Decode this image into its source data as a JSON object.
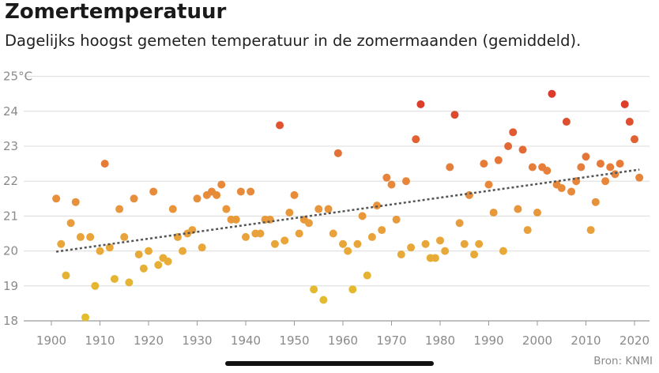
{
  "chart_data": {
    "type": "scatter",
    "title": "Zomertemperatuur",
    "subtitle": "Dagelijks hoogst gemeten temperatuur in de zomermaanden (gemiddeld).",
    "source": "Bron: KNMI",
    "xlim": [
      1900,
      2022
    ],
    "ylim": [
      18,
      25
    ],
    "x_ticks": [
      1900,
      1910,
      1920,
      1930,
      1940,
      1950,
      1960,
      1970,
      1980,
      1990,
      2000,
      2010,
      2020
    ],
    "y_ticks": [
      18,
      19,
      20,
      21,
      22,
      23,
      24,
      25
    ],
    "y_tick_labels": [
      "18",
      "19",
      "20",
      "21",
      "22",
      "23",
      "24",
      "25°C"
    ],
    "grid": "horizontal",
    "color_scale": [
      "#e3bd2c",
      "#e9a33b",
      "#e67f3a",
      "#dc3a2a"
    ],
    "trend": {
      "x": [
        1901,
        2021
      ],
      "y": [
        19.98,
        22.33
      ],
      "style": "dotted",
      "color": "#555555"
    },
    "series": [
      {
        "x": [
          1901,
          1902,
          1903,
          1904,
          1905,
          1906,
          1907,
          1908,
          1909,
          1910,
          1911,
          1912,
          1913,
          1914,
          1915,
          1916,
          1917,
          1918,
          1919,
          1920,
          1921,
          1922,
          1923,
          1924,
          1925,
          1926,
          1927,
          1928,
          1929,
          1930,
          1931,
          1932,
          1933,
          1934,
          1935,
          1936,
          1937,
          1938,
          1939,
          1940,
          1941,
          1942,
          1943,
          1944,
          1945,
          1946,
          1947,
          1948,
          1949,
          1950,
          1951,
          1952,
          1953,
          1954,
          1955,
          1956,
          1957,
          1958,
          1959,
          1960,
          1961,
          1962,
          1963,
          1964,
          1965,
          1966,
          1967,
          1968,
          1969,
          1970,
          1971,
          1972,
          1973,
          1974,
          1975,
          1976,
          1977,
          1978,
          1979,
          1980,
          1981,
          1982,
          1983,
          1984,
          1985,
          1986,
          1987,
          1988,
          1989,
          1990,
          1991,
          1992,
          1993,
          1994,
          1995,
          1996,
          1997,
          1998,
          1999,
          2000,
          2001,
          2002,
          2003,
          2004,
          2005,
          2006,
          2007,
          2008,
          2009,
          2010,
          2011,
          2012,
          2013,
          2014,
          2015,
          2016,
          2017,
          2018,
          2019,
          2020,
          2021
        ],
        "y": [
          21.5,
          20.2,
          19.3,
          20.8,
          21.4,
          20.4,
          18.1,
          20.4,
          19.0,
          20.0,
          22.5,
          20.1,
          19.2,
          21.2,
          20.4,
          19.1,
          21.5,
          19.9,
          19.5,
          20.0,
          21.7,
          19.6,
          19.8,
          19.7,
          21.2,
          20.4,
          20.0,
          20.5,
          20.6,
          21.5,
          20.1,
          21.6,
          21.7,
          21.6,
          21.9,
          21.2,
          20.9,
          20.9,
          21.7,
          20.4,
          21.7,
          20.5,
          20.5,
          20.9,
          20.9,
          20.2,
          23.6,
          20.3,
          21.1,
          21.6,
          20.5,
          20.9,
          20.8,
          18.9,
          21.2,
          18.6,
          21.2,
          20.5,
          22.8,
          20.2,
          20.0,
          18.9,
          20.2,
          21.0,
          19.3,
          20.4,
          21.3,
          20.6,
          22.1,
          21.9,
          20.9,
          19.9,
          22.0,
          20.1,
          23.2,
          24.2,
          20.2,
          19.8,
          19.8,
          20.3,
          20.0,
          22.4,
          23.9,
          20.8,
          20.2,
          21.6,
          19.9,
          20.2,
          22.5,
          21.9,
          21.1,
          22.6,
          20.0,
          23.0,
          23.4,
          21.2,
          22.9,
          20.6,
          22.4,
          21.1,
          22.4,
          22.3,
          24.5,
          21.9,
          21.8,
          23.7,
          21.7,
          22.0,
          22.4,
          22.7,
          20.6,
          21.4,
          22.5,
          22.0,
          22.4,
          22.2,
          22.5,
          24.2,
          23.7,
          23.2,
          22.1
        ]
      }
    ]
  }
}
